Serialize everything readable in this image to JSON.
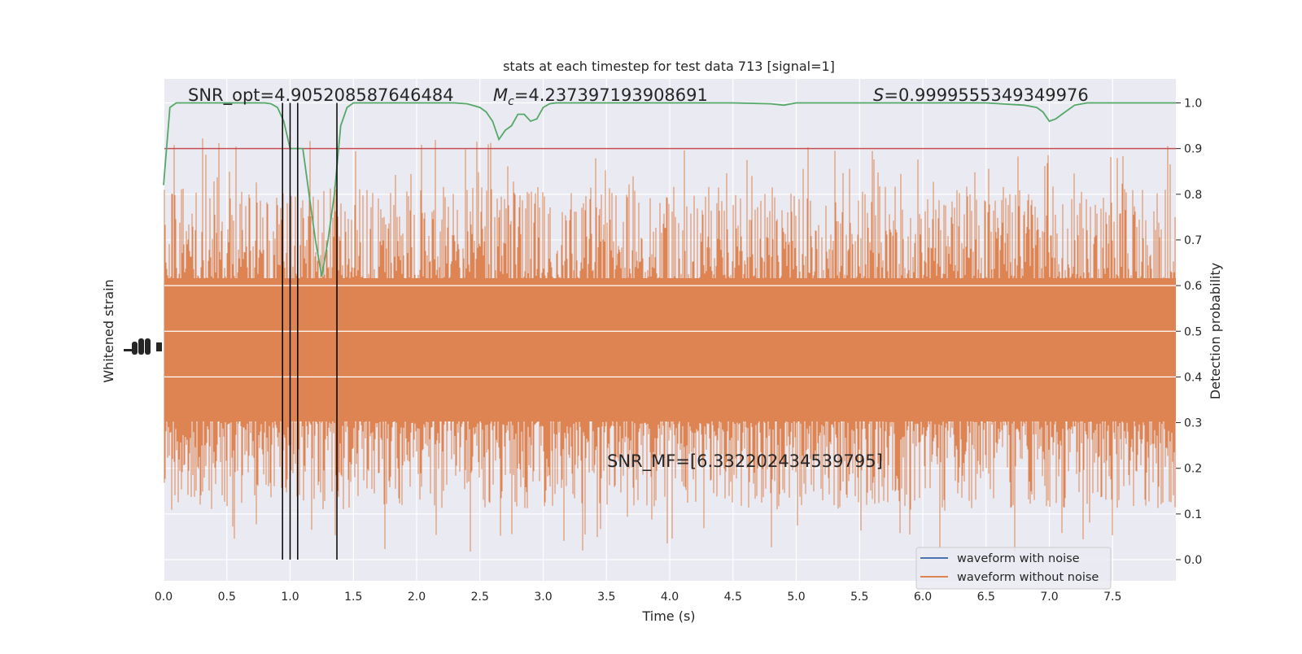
{
  "chart_data": {
    "type": "line",
    "title": "stats at each timestep for test data 713 [signal=1]",
    "xlabel": "Time (s)",
    "ylabel_left": "Whitened strain",
    "ylabel_right": "Detection probability",
    "xlim": [
      0.0,
      8.0
    ],
    "ylim_right": [
      -0.05,
      1.05
    ],
    "x_ticks": [
      "0.0",
      "0.5",
      "1.0",
      "1.5",
      "2.0",
      "2.5",
      "3.0",
      "3.5",
      "4.0",
      "4.5",
      "5.0",
      "5.5",
      "6.0",
      "6.5",
      "7.0",
      "7.5"
    ],
    "y_ticks_right": [
      "0.0",
      "0.1",
      "0.2",
      "0.3",
      "0.4",
      "0.5",
      "0.6",
      "0.7",
      "0.8",
      "0.9",
      "1.0"
    ],
    "grid": true,
    "legend_placement": "lower-right",
    "colors": {
      "background": "#eaeaf2",
      "grid": "#ffffff",
      "waveform_with_noise": "#4c72b0",
      "waveform_without_noise": "#dd8452",
      "probability": "#55a868",
      "threshold": "#c44e52",
      "markers": "#000000"
    },
    "annotations": {
      "snr_opt": "SNR_opt=4.905208587646484",
      "mc_symbol": "M",
      "mc_sub": "c",
      "mc_value": "=4.237397193908691",
      "s_symbol": "S",
      "s_value": "=0.9999555349349976",
      "snr_mf": "SNR_MF=[6.332202434539795]"
    },
    "threshold": 0.9,
    "vertical_markers": [
      0.94,
      1.0,
      1.06,
      1.37
    ],
    "probability_series": {
      "name": "Detection probability",
      "x": [
        0.0,
        0.05,
        0.1,
        0.2,
        0.4,
        0.6,
        0.8,
        0.85,
        0.9,
        0.95,
        1.0,
        1.05,
        1.1,
        1.15,
        1.2,
        1.25,
        1.3,
        1.35,
        1.4,
        1.45,
        1.5,
        1.7,
        2.0,
        2.3,
        2.4,
        2.5,
        2.55,
        2.6,
        2.65,
        2.7,
        2.75,
        2.8,
        2.85,
        2.9,
        2.95,
        3.0,
        3.05,
        3.1,
        3.2,
        3.5,
        4.0,
        4.5,
        4.8,
        4.9,
        5.0,
        5.5,
        6.0,
        6.5,
        6.8,
        6.9,
        6.95,
        7.0,
        7.05,
        7.1,
        7.2,
        7.3,
        7.5,
        8.0
      ],
      "y": [
        0.82,
        0.99,
        1.0,
        1.0,
        1.0,
        1.0,
        1.0,
        0.998,
        0.99,
        0.96,
        0.9,
        0.9,
        0.9,
        0.8,
        0.7,
        0.62,
        0.7,
        0.8,
        0.95,
        0.99,
        1.0,
        1.0,
        1.0,
        1.0,
        0.998,
        0.99,
        0.98,
        0.96,
        0.92,
        0.94,
        0.95,
        0.975,
        0.975,
        0.96,
        0.965,
        0.99,
        0.998,
        1.0,
        1.0,
        1.0,
        1.0,
        1.0,
        0.998,
        0.995,
        1.0,
        1.0,
        1.0,
        1.0,
        0.995,
        0.99,
        0.98,
        0.96,
        0.965,
        0.975,
        0.995,
        1.0,
        1.0,
        1.0
      ]
    },
    "legend": [
      {
        "label": "waveform with noise",
        "color": "#4c72b0"
      },
      {
        "label": "waveform without noise",
        "color": "#dd8452"
      }
    ]
  }
}
